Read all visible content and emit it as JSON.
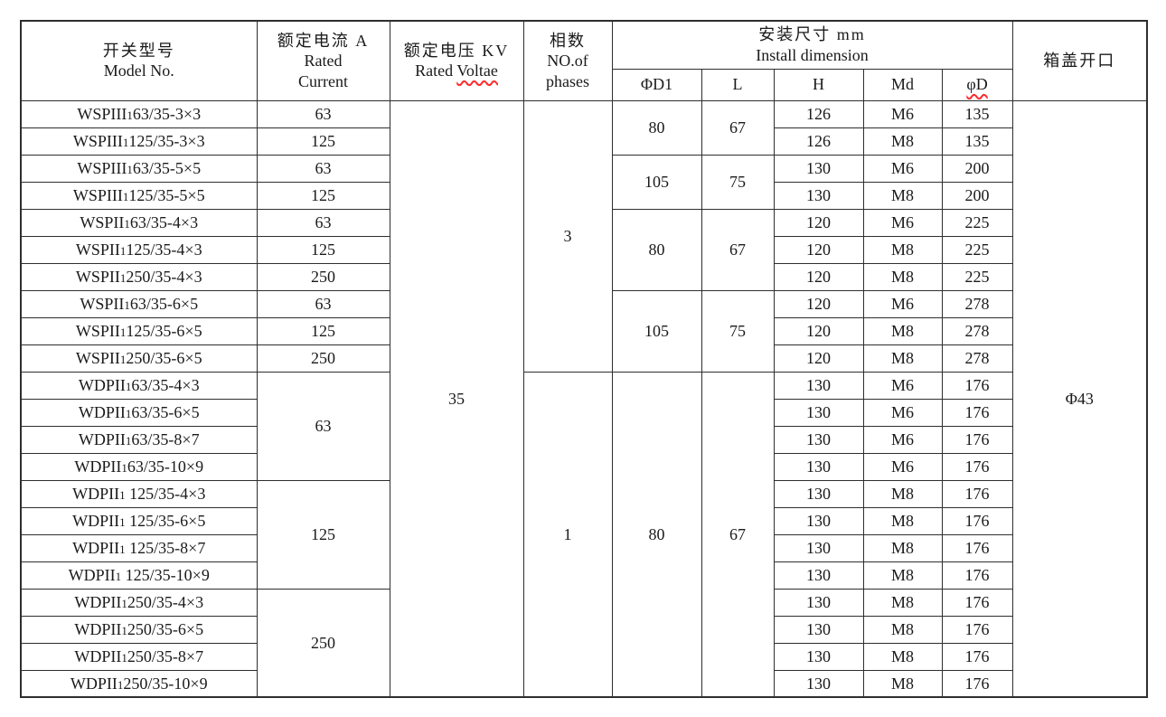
{
  "colors": {
    "border": "#2e2e2e",
    "spellcheck_squiggle": "#ff2b2b",
    "text": "#1a1a1a",
    "background": "#ffffff"
  },
  "table": {
    "header": {
      "model": {
        "zh": "开关型号",
        "en": "Model No."
      },
      "current": {
        "zh": "额定电流 A",
        "en1": "Rated",
        "en2": "Current"
      },
      "voltage": {
        "zh": "额定电压 KV",
        "en_prefix": "Rated ",
        "en_word": "Voltae"
      },
      "phases": {
        "zh": "相数",
        "en1": "NO.of",
        "en2": "phases"
      },
      "install": {
        "zh": "安装尺寸 mm",
        "en": "Install dimension"
      },
      "install_cols": [
        "ΦD1",
        "L",
        "H",
        "Md",
        "φD"
      ],
      "cover": {
        "zh": "箱盖开口"
      }
    },
    "voltage_value": "35",
    "cover_value": "Φ43",
    "merges": {
      "current": [
        {
          "row": 0,
          "span": 1,
          "value": "63"
        },
        {
          "row": 1,
          "span": 1,
          "value": "125"
        },
        {
          "row": 2,
          "span": 1,
          "value": "63"
        },
        {
          "row": 3,
          "span": 1,
          "value": "125"
        },
        {
          "row": 4,
          "span": 1,
          "value": "63"
        },
        {
          "row": 5,
          "span": 1,
          "value": "125"
        },
        {
          "row": 6,
          "span": 1,
          "value": "250"
        },
        {
          "row": 7,
          "span": 1,
          "value": "63"
        },
        {
          "row": 8,
          "span": 1,
          "value": "125"
        },
        {
          "row": 9,
          "span": 1,
          "value": "250"
        },
        {
          "row": 10,
          "span": 4,
          "value": "63"
        },
        {
          "row": 14,
          "span": 4,
          "value": "125"
        },
        {
          "row": 18,
          "span": 4,
          "value": "250"
        }
      ],
      "phases": [
        {
          "row": 0,
          "span": 10,
          "value": "3"
        },
        {
          "row": 10,
          "span": 12,
          "value": "1"
        }
      ],
      "dims": [
        {
          "row": 0,
          "span": 2,
          "d1": "80",
          "l": "67"
        },
        {
          "row": 2,
          "span": 2,
          "d1": "105",
          "l": "75"
        },
        {
          "row": 4,
          "span": 3,
          "d1": "80",
          "l": "67"
        },
        {
          "row": 7,
          "span": 3,
          "d1": "105",
          "l": "75"
        },
        {
          "row": 10,
          "span": 12,
          "d1": "80",
          "l": "67"
        }
      ]
    },
    "rows": [
      {
        "model_prefix": "WSPIII",
        "model_sub": "1",
        "model_rest": "63/35-3×3",
        "h": "126",
        "md": "M6",
        "phid": "135"
      },
      {
        "model_prefix": "WSPIII",
        "model_sub": "1",
        "model_rest": "125/35-3×3",
        "h": "126",
        "md": "M8",
        "phid": "135"
      },
      {
        "model_prefix": "WSPIII",
        "model_sub": "1",
        "model_rest": "63/35-5×5",
        "h": "130",
        "md": "M6",
        "phid": "200"
      },
      {
        "model_prefix": "WSPIII",
        "model_sub": "1",
        "model_rest": "125/35-5×5",
        "h": "130",
        "md": "M8",
        "phid": "200"
      },
      {
        "model_prefix": "WSPII",
        "model_sub": "1",
        "model_rest": "63/35-4×3",
        "h": "120",
        "md": "M6",
        "phid": "225"
      },
      {
        "model_prefix": "WSPII",
        "model_sub": "1",
        "model_rest": "125/35-4×3",
        "h": "120",
        "md": "M8",
        "phid": "225"
      },
      {
        "model_prefix": "WSPII",
        "model_sub": "1",
        "model_rest": "250/35-4×3",
        "h": "120",
        "md": "M8",
        "phid": "225"
      },
      {
        "model_prefix": "WSPII",
        "model_sub": "1",
        "model_rest": "63/35-6×5",
        "h": "120",
        "md": "M6",
        "phid": "278"
      },
      {
        "model_prefix": "WSPII",
        "model_sub": "1",
        "model_rest": "125/35-6×5",
        "h": "120",
        "md": "M8",
        "phid": "278"
      },
      {
        "model_prefix": "WSPII",
        "model_sub": "1",
        "model_rest": "250/35-6×5",
        "h": "120",
        "md": "M8",
        "phid": "278"
      },
      {
        "model_prefix": "WDPII",
        "model_sub": "1",
        "model_rest": "63/35-4×3",
        "h": "130",
        "md": "M6",
        "phid": "176"
      },
      {
        "model_prefix": "WDPII",
        "model_sub": "1",
        "model_rest": "63/35-6×5",
        "h": "130",
        "md": "M6",
        "phid": "176"
      },
      {
        "model_prefix": "WDPII",
        "model_sub": "1",
        "model_rest": "63/35-8×7",
        "h": "130",
        "md": "M6",
        "phid": "176"
      },
      {
        "model_prefix": "WDPII",
        "model_sub": "1",
        "model_rest": "63/35-10×9",
        "h": "130",
        "md": "M6",
        "phid": "176"
      },
      {
        "model_prefix": "WDPII",
        "model_sub": "1",
        "model_rest": " 125/35-4×3",
        "h": "130",
        "md": "M8",
        "phid": "176"
      },
      {
        "model_prefix": "WDPII",
        "model_sub": "1",
        "model_rest": " 125/35-6×5",
        "h": "130",
        "md": "M8",
        "phid": "176"
      },
      {
        "model_prefix": "WDPII",
        "model_sub": "1",
        "model_rest": " 125/35-8×7",
        "h": "130",
        "md": "M8",
        "phid": "176"
      },
      {
        "model_prefix": "WDPII",
        "model_sub": "1",
        "model_rest": " 125/35-10×9",
        "h": "130",
        "md": "M8",
        "phid": "176"
      },
      {
        "model_prefix": "WDPII",
        "model_sub": "1",
        "model_rest": "250/35-4×3",
        "h": "130",
        "md": "M8",
        "phid": "176"
      },
      {
        "model_prefix": "WDPII",
        "model_sub": "1",
        "model_rest": "250/35-6×5",
        "h": "130",
        "md": "M8",
        "phid": "176"
      },
      {
        "model_prefix": "WDPII",
        "model_sub": "1",
        "model_rest": "250/35-8×7",
        "h": "130",
        "md": "M8",
        "phid": "176"
      },
      {
        "model_prefix": "WDPII",
        "model_sub": "1",
        "model_rest": "250/35-10×9",
        "h": "130",
        "md": "M8",
        "phid": "176"
      }
    ]
  }
}
